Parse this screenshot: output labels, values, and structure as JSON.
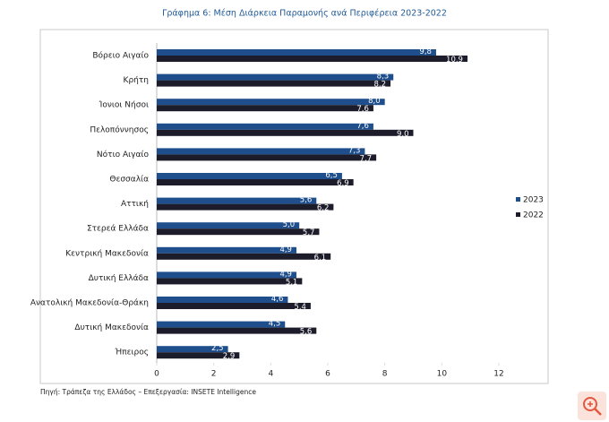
{
  "chart_data": {
    "type": "bar",
    "orientation": "horizontal",
    "title": "Γράφημα 6: Μέση Διάρκεια Παραμονής ανά Περιφέρεια 2023-2022",
    "source": "Πηγή: Τράπεζα της Ελλάδος – Επεξεργασία: INSETE Intelligence",
    "categories": [
      "Βόρειο Αιγαίο",
      "Κρήτη",
      "Ίονιοι Νήσοι",
      "Πελοπόννησος",
      "Νότιο Αιγαίο",
      "Θεσσαλία",
      "Αττική",
      "Στερεά Ελλάδα",
      "Κεντρική Μακεδονία",
      "Δυτική Ελλάδα",
      "Ανατολική Μακεδονία-Θράκη",
      "Δυτική Μακεδονία",
      "Ήπειρος"
    ],
    "series": [
      {
        "name": "2023",
        "color": "#1f4e8c",
        "values": [
          9.8,
          8.3,
          8.0,
          7.6,
          7.3,
          6.5,
          5.6,
          5.0,
          4.9,
          4.9,
          4.6,
          4.5,
          2.5
        ],
        "value_labels": [
          "9,8",
          "8,3",
          "8,0",
          "7,6",
          "7,3",
          "6,5",
          "5,6",
          "5,0",
          "4,9",
          "4,9",
          "4,6",
          "4,5",
          "2,5"
        ]
      },
      {
        "name": "2022",
        "color": "#1c1c2b",
        "values": [
          10.9,
          8.2,
          7.6,
          9.0,
          7.7,
          6.9,
          6.2,
          5.7,
          6.1,
          5.1,
          5.4,
          5.6,
          2.9
        ],
        "value_labels": [
          "10,9",
          "8,2",
          "7,6",
          "9,0",
          "7,7",
          "6,9",
          "6,2",
          "5,7",
          "6,1",
          "5,1",
          "5,4",
          "5,6",
          "2,9"
        ]
      }
    ],
    "xlim": [
      0,
      12
    ],
    "xticks": [
      0,
      2,
      4,
      6,
      8,
      10,
      12
    ],
    "legend": "right"
  }
}
